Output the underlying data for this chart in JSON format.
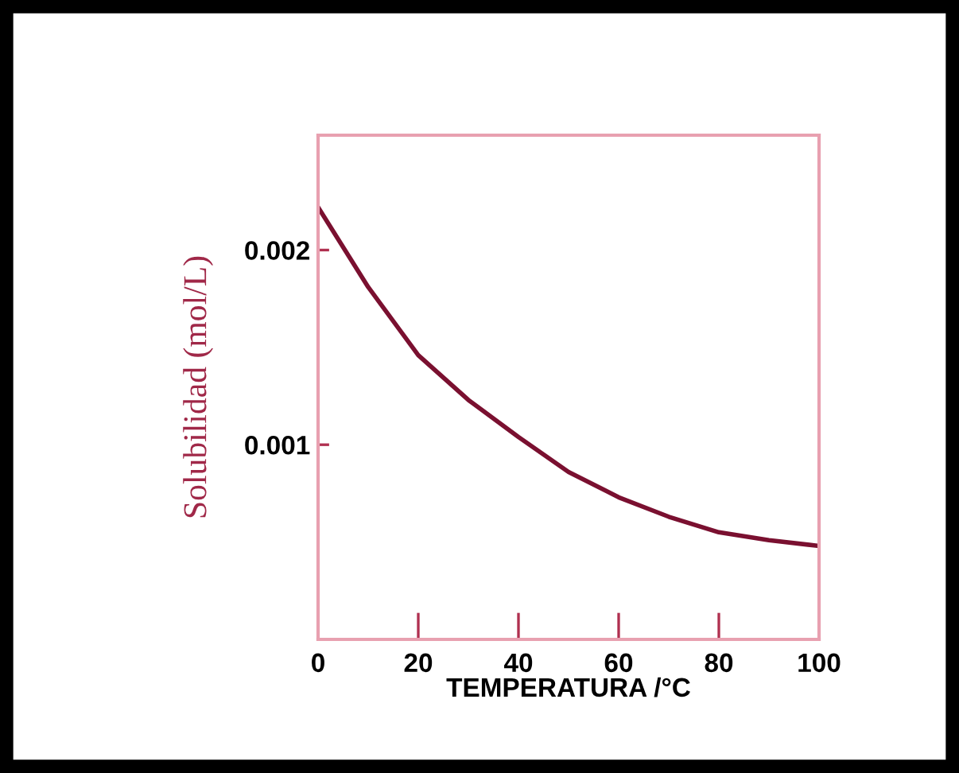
{
  "chart_data": {
    "type": "line",
    "xlabel": "TEMPERATURA /°C",
    "ylabel": "Solubilidad (mol/L)",
    "x": [
      0,
      10,
      20,
      30,
      40,
      50,
      60,
      70,
      80,
      90,
      100
    ],
    "series": [
      {
        "color": "#7a1030",
        "values": [
          0.00222,
          0.00181,
          0.00146,
          0.00123,
          0.00104,
          0.00086,
          0.00073,
          0.00063,
          0.00055,
          0.00051,
          0.00048
        ]
      }
    ],
    "xlim": [
      0,
      100
    ],
    "ylim": [
      0,
      0.00259
    ],
    "xticks": [
      0,
      20,
      40,
      60,
      80,
      100
    ],
    "yticks": [
      0.001,
      0.002
    ],
    "grid": false,
    "legend": false,
    "marker": "none",
    "line_style": "solid"
  }
}
